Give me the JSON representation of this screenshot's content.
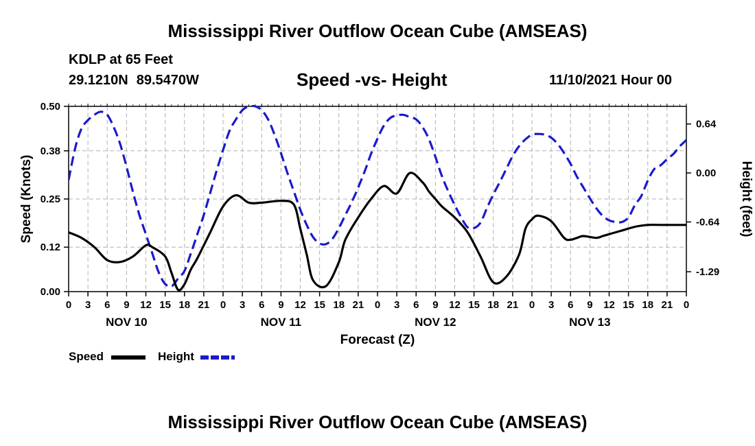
{
  "header": {
    "title": "Mississippi River Outflow Ocean Cube (AMSEAS)",
    "station": "KDLP at 65 Feet",
    "latitude": "29.1210N",
    "longitude": "89.5470W",
    "datetime": "11/10/2021 Hour 00",
    "footer_title": "Mississippi River Outflow Ocean Cube (AMSEAS)"
  },
  "chart_data": {
    "type": "line",
    "title": "Speed -vs- Height",
    "xlabel": "Forecast (Z)",
    "ylabel": "Speed (Knots)",
    "y2label": "Height (feet)",
    "xlim": [
      0,
      96
    ],
    "ylim": [
      0,
      0.5
    ],
    "y2lim": [
      -1.55,
      0.87
    ],
    "grid": true,
    "legend_position": "bottom-left",
    "x_tick_labels": [
      "0",
      "3",
      "6",
      "9",
      "12",
      "15",
      "18",
      "21",
      "0",
      "3",
      "6",
      "9",
      "12",
      "15",
      "18",
      "21",
      "0",
      "3",
      "6",
      "9",
      "12",
      "15",
      "18",
      "21",
      "0",
      "3",
      "6",
      "9",
      "12",
      "15",
      "18",
      "21",
      "0"
    ],
    "day_labels": [
      {
        "label": "NOV 10",
        "x": 9
      },
      {
        "label": "NOV 11",
        "x": 33
      },
      {
        "label": "NOV 12",
        "x": 57
      },
      {
        "label": "NOV 13",
        "x": 81
      }
    ],
    "y_ticks": [
      "0.00",
      "0.12",
      "0.25",
      "0.38",
      "0.50"
    ],
    "y2_ticks": [
      "0.64",
      "0.00",
      "-0.64",
      "-1.29"
    ],
    "series": [
      {
        "name": "Speed",
        "axis": "left",
        "color": "#000000",
        "dash": "solid",
        "x": [
          0,
          2,
          4,
          6,
          8,
          10,
          12,
          13,
          15,
          16,
          17,
          18,
          19,
          20,
          22,
          24,
          26,
          28,
          30,
          33,
          35,
          36,
          37,
          38,
          40,
          42,
          43,
          45,
          47,
          49,
          51,
          53,
          55,
          56,
          57,
          58,
          60,
          62,
          64,
          66,
          68,
          70,
          71,
          72,
          73,
          75,
          77,
          78,
          79,
          80,
          82,
          83,
          84,
          86,
          88,
          90,
          92,
          94,
          96
        ],
        "y": [
          0.16,
          0.145,
          0.12,
          0.085,
          0.08,
          0.095,
          0.125,
          0.12,
          0.095,
          0.05,
          0.005,
          0.02,
          0.06,
          0.09,
          0.16,
          0.23,
          0.26,
          0.24,
          0.24,
          0.245,
          0.235,
          0.17,
          0.1,
          0.03,
          0.015,
          0.08,
          0.14,
          0.2,
          0.25,
          0.285,
          0.265,
          0.32,
          0.295,
          0.27,
          0.25,
          0.23,
          0.2,
          0.16,
          0.095,
          0.025,
          0.04,
          0.1,
          0.17,
          0.195,
          0.205,
          0.19,
          0.145,
          0.14,
          0.145,
          0.15,
          0.145,
          0.15,
          0.155,
          0.165,
          0.175,
          0.18,
          0.18,
          0.18,
          0.18
        ]
      },
      {
        "name": "Height",
        "axis": "right",
        "color": "#1a1acc",
        "dash": "dashed",
        "x": [
          0,
          1,
          2,
          3,
          4,
          5,
          6,
          7,
          8,
          9,
          10,
          11,
          12,
          13,
          14,
          15,
          16,
          17,
          18,
          19,
          20,
          21,
          22,
          23,
          24,
          25,
          26,
          27,
          28,
          29,
          30,
          31,
          32,
          33,
          34,
          35,
          36,
          37,
          38,
          39,
          40,
          41,
          42,
          43,
          44,
          45,
          46,
          47,
          48,
          49,
          50,
          51,
          52,
          53,
          54,
          55,
          56,
          57,
          58,
          59,
          60,
          61,
          62,
          63,
          64,
          65,
          66,
          67,
          68,
          69,
          70,
          71,
          72,
          73,
          74,
          75,
          76,
          77,
          78,
          79,
          80,
          81,
          82,
          83,
          84,
          85,
          86,
          87,
          88,
          89,
          90,
          91,
          92,
          93,
          94,
          95,
          96
        ],
        "y": [
          -0.09,
          0.32,
          0.58,
          0.69,
          0.76,
          0.8,
          0.76,
          0.6,
          0.38,
          0.08,
          -0.25,
          -0.55,
          -0.8,
          -1.05,
          -1.3,
          -1.45,
          -1.48,
          -1.38,
          -1.28,
          -1.05,
          -0.8,
          -0.55,
          -0.26,
          0.03,
          0.3,
          0.55,
          0.7,
          0.82,
          0.87,
          0.87,
          0.82,
          0.7,
          0.5,
          0.26,
          0.0,
          -0.24,
          -0.48,
          -0.68,
          -0.84,
          -0.92,
          -0.93,
          -0.86,
          -0.72,
          -0.55,
          -0.38,
          -0.19,
          0.02,
          0.25,
          0.45,
          0.62,
          0.72,
          0.75,
          0.76,
          0.73,
          0.7,
          0.6,
          0.44,
          0.21,
          -0.04,
          -0.24,
          -0.42,
          -0.58,
          -0.71,
          -0.72,
          -0.65,
          -0.46,
          -0.28,
          -0.12,
          0.05,
          0.22,
          0.35,
          0.44,
          0.5,
          0.51,
          0.5,
          0.46,
          0.38,
          0.26,
          0.12,
          -0.05,
          -0.19,
          -0.33,
          -0.46,
          -0.56,
          -0.62,
          -0.64,
          -0.64,
          -0.58,
          -0.42,
          -0.3,
          -0.1,
          0.05,
          0.1,
          0.18,
          0.25,
          0.35,
          0.43
        ]
      }
    ]
  }
}
